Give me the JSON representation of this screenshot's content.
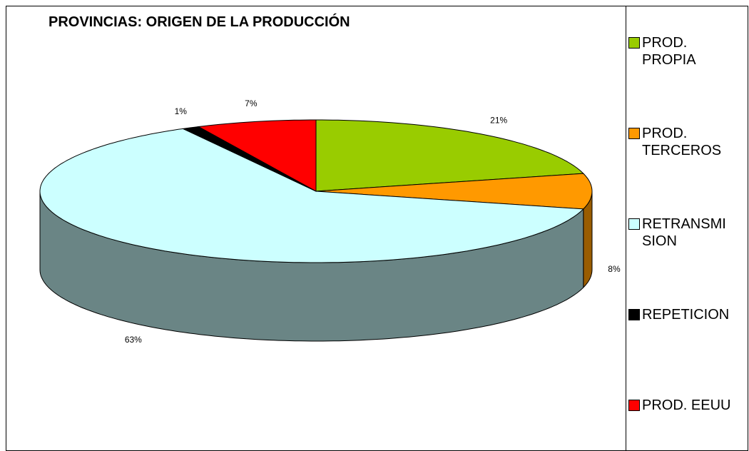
{
  "chart_data": {
    "type": "pie",
    "title": "PROVINCIAS: ORIGEN DE LA PRODUCCIÓN",
    "categories": [
      "PROD. PROPIA",
      "PROD. TERCEROS",
      "RETRANSMISION",
      "REPETICION",
      "PROD. EEUU"
    ],
    "values": [
      21,
      8,
      63,
      1,
      7
    ],
    "value_labels": [
      "21%",
      "8%",
      "63%",
      "1%",
      "7%"
    ],
    "colors": [
      "#99cc00",
      "#ff9900",
      "#ccffff",
      "#000000",
      "#ff0000"
    ],
    "legend": "right"
  }
}
